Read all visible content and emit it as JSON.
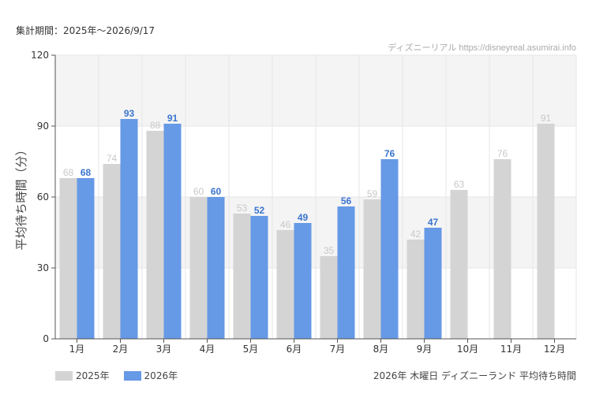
{
  "header": {
    "period_label": "集計期間：2025年〜2026/9/17"
  },
  "footer": {
    "caption": "2026年 木曜日 ディズニーランド 平均待ち時間"
  },
  "chart_data": {
    "type": "bar",
    "ylabel": "平均待ち時間（分）",
    "watermark": "ディズニーリアル https://disneyreal.asumirai.info",
    "ylim": [
      0,
      120
    ],
    "yticks": [
      "0",
      "30",
      "60",
      "90",
      "120"
    ],
    "categories": [
      "1月",
      "2月",
      "3月",
      "4月",
      "5月",
      "6月",
      "7月",
      "8月",
      "9月",
      "10月",
      "11月",
      "12月"
    ],
    "series": [
      {
        "name": "2025年",
        "color": "#d4d4d4",
        "label_color": "#c8c8c8",
        "values": [
          68,
          74,
          88,
          60,
          53,
          46,
          35,
          59,
          42,
          63,
          76,
          91
        ]
      },
      {
        "name": "2026年",
        "color": "#6699e6",
        "label_color": "#3a74cf",
        "values": [
          68,
          93,
          91,
          60,
          52,
          49,
          56,
          76,
          47,
          null,
          null,
          null
        ]
      }
    ],
    "colors": {
      "band": "#f4f4f4",
      "grid": "#e6e6e6",
      "axis": "#555555"
    }
  }
}
